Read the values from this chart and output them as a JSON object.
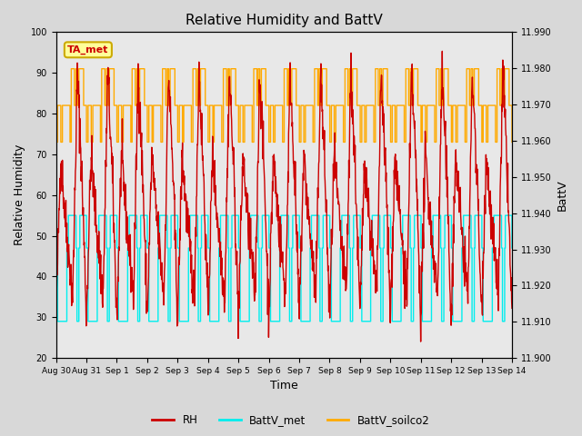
{
  "title": "Relative Humidity and BattV",
  "ylabel_left": "Relative Humidity",
  "ylabel_right": "BattV",
  "xlabel": "Time",
  "ylim_left": [
    20,
    100
  ],
  "ylim_right": [
    11.9,
    11.99
  ],
  "background_color": "#d8d8d8",
  "plot_bg_color": "#e8e8e8",
  "annotation_text": "TA_met",
  "annotation_bg": "#ffff99",
  "annotation_border": "#ccaa00",
  "annotation_text_color": "#cc0000",
  "x_tick_labels": [
    "Aug 30",
    "Aug 31",
    "Sep 1",
    "Sep 2",
    "Sep 3",
    "Sep 4",
    "Sep 5",
    "Sep 6",
    "Sep 7",
    "Sep 8",
    "Sep 9",
    "Sep 10",
    "Sep 11",
    "Sep 12",
    "Sep 13",
    "Sep 14"
  ],
  "rh_color": "#cc0000",
  "battv_met_color": "#00eeee",
  "battv_soilco2_color": "#ffaa00",
  "figwidth": 6.4,
  "figheight": 4.8,
  "dpi": 100
}
